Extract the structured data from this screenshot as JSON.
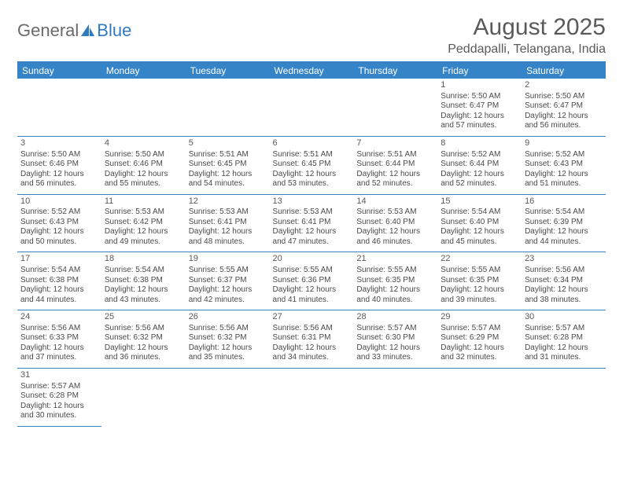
{
  "logo": {
    "part1": "General",
    "part2": "Blue"
  },
  "title": "August 2025",
  "location": "Peddapalli, Telangana, India",
  "colors": {
    "header_bg": "#3584c7",
    "border": "#3a7fbf",
    "text": "#4a4a4a",
    "logo_gray": "#6a6a6a",
    "logo_blue": "#2f7ac0"
  },
  "weekdays": [
    "Sunday",
    "Monday",
    "Tuesday",
    "Wednesday",
    "Thursday",
    "Friday",
    "Saturday"
  ],
  "first_weekday_index": 5,
  "days": [
    {
      "n": 1,
      "sr": "5:50 AM",
      "ss": "6:47 PM",
      "dl": "12 hours and 57 minutes."
    },
    {
      "n": 2,
      "sr": "5:50 AM",
      "ss": "6:47 PM",
      "dl": "12 hours and 56 minutes."
    },
    {
      "n": 3,
      "sr": "5:50 AM",
      "ss": "6:46 PM",
      "dl": "12 hours and 56 minutes."
    },
    {
      "n": 4,
      "sr": "5:50 AM",
      "ss": "6:46 PM",
      "dl": "12 hours and 55 minutes."
    },
    {
      "n": 5,
      "sr": "5:51 AM",
      "ss": "6:45 PM",
      "dl": "12 hours and 54 minutes."
    },
    {
      "n": 6,
      "sr": "5:51 AM",
      "ss": "6:45 PM",
      "dl": "12 hours and 53 minutes."
    },
    {
      "n": 7,
      "sr": "5:51 AM",
      "ss": "6:44 PM",
      "dl": "12 hours and 52 minutes."
    },
    {
      "n": 8,
      "sr": "5:52 AM",
      "ss": "6:44 PM",
      "dl": "12 hours and 52 minutes."
    },
    {
      "n": 9,
      "sr": "5:52 AM",
      "ss": "6:43 PM",
      "dl": "12 hours and 51 minutes."
    },
    {
      "n": 10,
      "sr": "5:52 AM",
      "ss": "6:43 PM",
      "dl": "12 hours and 50 minutes."
    },
    {
      "n": 11,
      "sr": "5:53 AM",
      "ss": "6:42 PM",
      "dl": "12 hours and 49 minutes."
    },
    {
      "n": 12,
      "sr": "5:53 AM",
      "ss": "6:41 PM",
      "dl": "12 hours and 48 minutes."
    },
    {
      "n": 13,
      "sr": "5:53 AM",
      "ss": "6:41 PM",
      "dl": "12 hours and 47 minutes."
    },
    {
      "n": 14,
      "sr": "5:53 AM",
      "ss": "6:40 PM",
      "dl": "12 hours and 46 minutes."
    },
    {
      "n": 15,
      "sr": "5:54 AM",
      "ss": "6:40 PM",
      "dl": "12 hours and 45 minutes."
    },
    {
      "n": 16,
      "sr": "5:54 AM",
      "ss": "6:39 PM",
      "dl": "12 hours and 44 minutes."
    },
    {
      "n": 17,
      "sr": "5:54 AM",
      "ss": "6:38 PM",
      "dl": "12 hours and 44 minutes."
    },
    {
      "n": 18,
      "sr": "5:54 AM",
      "ss": "6:38 PM",
      "dl": "12 hours and 43 minutes."
    },
    {
      "n": 19,
      "sr": "5:55 AM",
      "ss": "6:37 PM",
      "dl": "12 hours and 42 minutes."
    },
    {
      "n": 20,
      "sr": "5:55 AM",
      "ss": "6:36 PM",
      "dl": "12 hours and 41 minutes."
    },
    {
      "n": 21,
      "sr": "5:55 AM",
      "ss": "6:35 PM",
      "dl": "12 hours and 40 minutes."
    },
    {
      "n": 22,
      "sr": "5:55 AM",
      "ss": "6:35 PM",
      "dl": "12 hours and 39 minutes."
    },
    {
      "n": 23,
      "sr": "5:56 AM",
      "ss": "6:34 PM",
      "dl": "12 hours and 38 minutes."
    },
    {
      "n": 24,
      "sr": "5:56 AM",
      "ss": "6:33 PM",
      "dl": "12 hours and 37 minutes."
    },
    {
      "n": 25,
      "sr": "5:56 AM",
      "ss": "6:32 PM",
      "dl": "12 hours and 36 minutes."
    },
    {
      "n": 26,
      "sr": "5:56 AM",
      "ss": "6:32 PM",
      "dl": "12 hours and 35 minutes."
    },
    {
      "n": 27,
      "sr": "5:56 AM",
      "ss": "6:31 PM",
      "dl": "12 hours and 34 minutes."
    },
    {
      "n": 28,
      "sr": "5:57 AM",
      "ss": "6:30 PM",
      "dl": "12 hours and 33 minutes."
    },
    {
      "n": 29,
      "sr": "5:57 AM",
      "ss": "6:29 PM",
      "dl": "12 hours and 32 minutes."
    },
    {
      "n": 30,
      "sr": "5:57 AM",
      "ss": "6:28 PM",
      "dl": "12 hours and 31 minutes."
    },
    {
      "n": 31,
      "sr": "5:57 AM",
      "ss": "6:28 PM",
      "dl": "12 hours and 30 minutes."
    }
  ],
  "labels": {
    "sunrise": "Sunrise:",
    "sunset": "Sunset:",
    "daylight": "Daylight:"
  }
}
